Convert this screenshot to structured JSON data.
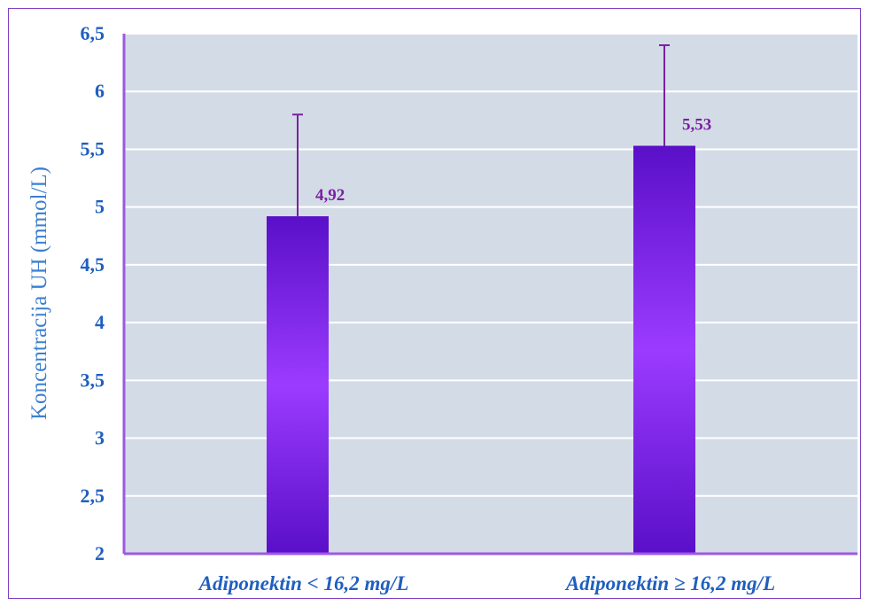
{
  "chart_data": {
    "type": "bar",
    "ylabel": "Koncentracija  UH (mmol/L)",
    "xlabel": "",
    "categories": [
      "Adiponektin < 16,2 mg/L",
      "Adiponektin ≥ 16,2 mg/L"
    ],
    "values": [
      4.92,
      5.53
    ],
    "error_upper": [
      5.8,
      6.4
    ],
    "data_labels": [
      "4,92",
      "5,53"
    ],
    "ylim": [
      2,
      6.5
    ],
    "yticks": [
      2,
      2.5,
      3,
      3.5,
      4,
      4.5,
      5,
      5.5,
      6,
      6.5
    ],
    "ytick_labels": [
      "2",
      "2,5",
      "3",
      "3,5",
      "4",
      "4,5",
      "5",
      "5,5",
      "6",
      "6,5"
    ],
    "grid": true,
    "legend": "none",
    "colors": {
      "plot_background": "#d3dce6",
      "bar_dark": "#5a0fc8",
      "bar_light": "#9b3bff",
      "axis": "#9b59e0",
      "error_bar": "#7b1fa2",
      "tick_text": "#1f5fbf",
      "ylabel_text": "#3a7fd0",
      "data_label_text": "#7b1fa2",
      "frame_border": "#7f3fbf"
    }
  }
}
